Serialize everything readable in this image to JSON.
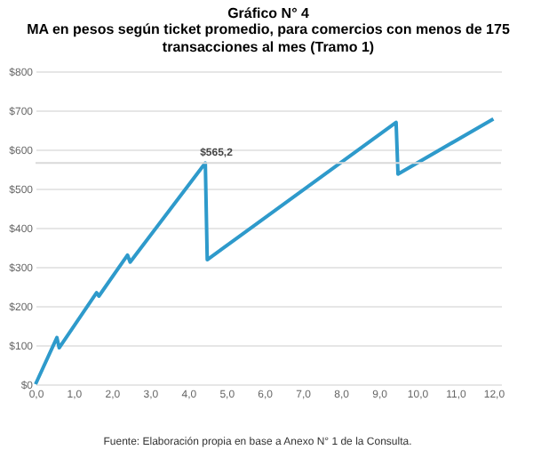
{
  "chart_data": {
    "type": "line",
    "title": "Gráfico N° 4",
    "subtitle": "MA en pesos según ticket promedio, para comercios con menos de 175 transacciones al mes (Tramo 1)",
    "x": [
      0,
      0.56,
      0.62,
      1.6,
      1.66,
      2.41,
      2.48,
      4.45,
      4.5,
      9.45,
      9.5,
      12.0
    ],
    "series": [
      {
        "color": "#2e9acb",
        "values": [
          0,
          119,
          93,
          234,
          225,
          330,
          312,
          565.2,
          318,
          669,
          537,
          678
        ]
      }
    ],
    "xlim": [
      0,
      12.2
    ],
    "xticks": [
      {
        "value": 0,
        "label": "0,0"
      },
      {
        "value": 1,
        "label": "1,0"
      },
      {
        "value": 2,
        "label": "2,0"
      },
      {
        "value": 3,
        "label": "3,0"
      },
      {
        "value": 4,
        "label": "4,0"
      },
      {
        "value": 5,
        "label": "5,0"
      },
      {
        "value": 6,
        "label": "6,0"
      },
      {
        "value": 7,
        "label": "7,0"
      },
      {
        "value": 8,
        "label": "8,0"
      },
      {
        "value": 9,
        "label": "9,0"
      },
      {
        "value": 10,
        "label": "10,0"
      },
      {
        "value": 11,
        "label": "11,0"
      },
      {
        "value": 12,
        "label": "12,0"
      }
    ],
    "ylim": [
      0,
      800
    ],
    "yticks": [
      {
        "value": 0,
        "label": "$0"
      },
      {
        "value": 100,
        "label": "$100"
      },
      {
        "value": 200,
        "label": "$200"
      },
      {
        "value": 300,
        "label": "$300"
      },
      {
        "value": 400,
        "label": "$400"
      },
      {
        "value": 500,
        "label": "$500"
      },
      {
        "value": 600,
        "label": "$600"
      },
      {
        "value": 700,
        "label": "$700"
      },
      {
        "value": 800,
        "label": "$800"
      }
    ],
    "grid": "y",
    "ref_lines": [
      {
        "axis": "y",
        "value": 565.2,
        "color": "#d9d9d9"
      }
    ],
    "annotations": [
      {
        "text": "$565,2",
        "x": 4.45,
        "y": 565.2
      },
      "Fuente: Elaboración propia en base a Anexo N° 1 de la Consulta."
    ]
  }
}
